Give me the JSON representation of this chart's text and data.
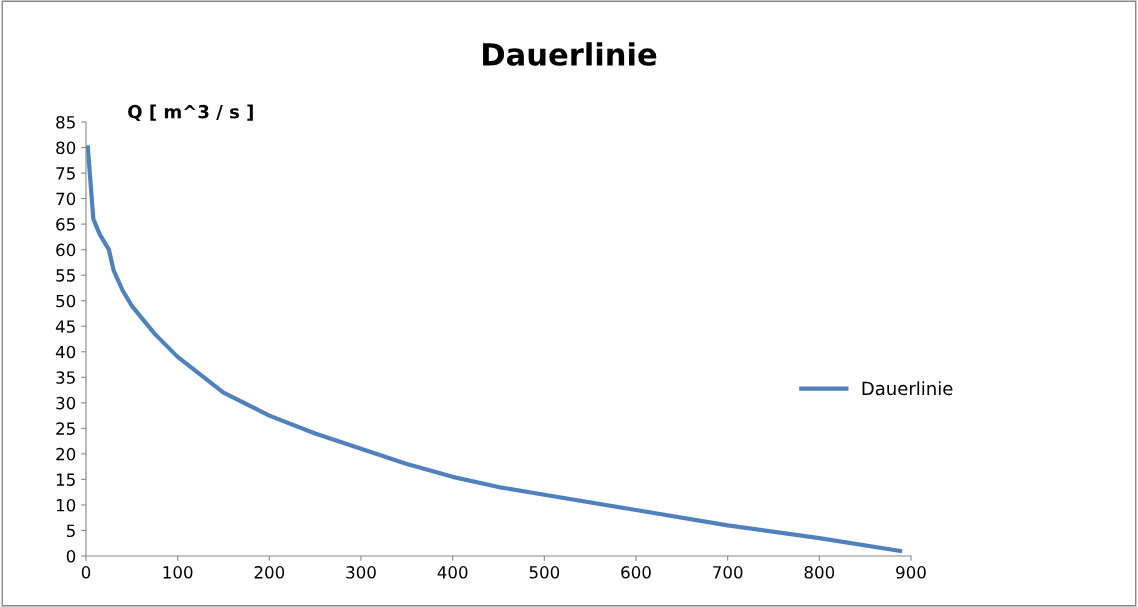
{
  "chart_data": {
    "type": "line",
    "title": "Dauerlinie",
    "ylabel": "Q [ m^3 / s ]",
    "x": [
      2,
      8,
      15,
      25,
      30,
      40,
      50,
      75,
      100,
      150,
      200,
      250,
      300,
      350,
      400,
      450,
      500,
      600,
      700,
      800,
      888
    ],
    "series": [
      {
        "name": "Dauerlinie",
        "color": "#4f81bd",
        "values": [
          80,
          66,
          63,
          60,
          56,
          52,
          49,
          43.5,
          39,
          32,
          27.5,
          24,
          21,
          18,
          15.5,
          13.5,
          12,
          9,
          6,
          3.5,
          1
        ]
      }
    ],
    "xlim": [
      0,
      900
    ],
    "xticks": [
      0,
      100,
      200,
      300,
      400,
      500,
      600,
      700,
      800,
      900
    ],
    "ylim": [
      0,
      85
    ],
    "yticks": [
      0,
      5,
      10,
      15,
      20,
      25,
      30,
      35,
      40,
      45,
      50,
      55,
      60,
      65,
      70,
      75,
      80,
      85
    ],
    "grid": false,
    "legend": "right",
    "marker": "none",
    "line_style": "solid"
  }
}
